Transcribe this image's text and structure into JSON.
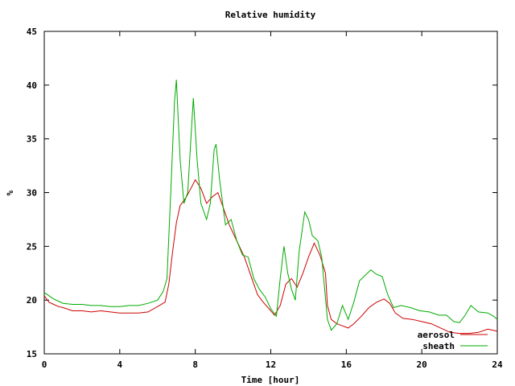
{
  "chart_data": {
    "type": "line",
    "title": "Relative humidity",
    "xlabel": "Time [hour]",
    "ylabel": "%",
    "xlim": [
      0,
      24
    ],
    "ylim": [
      15,
      45
    ],
    "x_ticks": [
      0,
      4,
      8,
      12,
      16,
      20,
      24
    ],
    "y_ticks": [
      15,
      20,
      25,
      30,
      35,
      40,
      45
    ],
    "grid": false,
    "legend_position": "bottom-right",
    "series": [
      {
        "name": "aerosol",
        "color": "#cc0000",
        "points": [
          [
            0,
            20.4
          ],
          [
            0.25,
            19.8
          ],
          [
            0.5,
            19.6
          ],
          [
            0.75,
            19.4
          ],
          [
            1,
            19.3
          ],
          [
            1.5,
            19.0
          ],
          [
            2,
            19.0
          ],
          [
            2.5,
            18.9
          ],
          [
            3,
            19.0
          ],
          [
            3.5,
            18.9
          ],
          [
            4,
            18.8
          ],
          [
            4.5,
            18.8
          ],
          [
            5,
            18.8
          ],
          [
            5.5,
            18.9
          ],
          [
            6,
            19.4
          ],
          [
            6.4,
            19.8
          ],
          [
            6.6,
            21.5
          ],
          [
            6.8,
            24.5
          ],
          [
            7.0,
            27.2
          ],
          [
            7.2,
            28.8
          ],
          [
            7.5,
            29.5
          ],
          [
            7.8,
            30.5
          ],
          [
            8.0,
            31.2
          ],
          [
            8.3,
            30.4
          ],
          [
            8.6,
            29.0
          ],
          [
            8.9,
            29.6
          ],
          [
            9.2,
            30.0
          ],
          [
            9.5,
            28.5
          ],
          [
            9.8,
            27.0
          ],
          [
            10.2,
            25.5
          ],
          [
            10.6,
            24.0
          ],
          [
            11.0,
            22.0
          ],
          [
            11.3,
            20.5
          ],
          [
            11.6,
            19.8
          ],
          [
            11.9,
            19.2
          ],
          [
            12.2,
            18.6
          ],
          [
            12.5,
            19.5
          ],
          [
            12.8,
            21.5
          ],
          [
            13.1,
            22.0
          ],
          [
            13.4,
            21.2
          ],
          [
            13.7,
            22.5
          ],
          [
            14.0,
            24.0
          ],
          [
            14.3,
            25.3
          ],
          [
            14.6,
            24.2
          ],
          [
            14.9,
            22.5
          ],
          [
            15.0,
            19.5
          ],
          [
            15.2,
            18.2
          ],
          [
            15.5,
            17.8
          ],
          [
            15.8,
            17.6
          ],
          [
            16.1,
            17.4
          ],
          [
            16.4,
            17.8
          ],
          [
            16.8,
            18.5
          ],
          [
            17.2,
            19.3
          ],
          [
            17.6,
            19.8
          ],
          [
            18.0,
            20.1
          ],
          [
            18.3,
            19.7
          ],
          [
            18.6,
            18.8
          ],
          [
            19.0,
            18.3
          ],
          [
            19.5,
            18.2
          ],
          [
            20.0,
            18.0
          ],
          [
            20.5,
            17.8
          ],
          [
            21.0,
            17.4
          ],
          [
            21.5,
            17.0
          ],
          [
            22.0,
            16.9
          ],
          [
            22.5,
            16.9
          ],
          [
            23.0,
            17.0
          ],
          [
            23.5,
            17.3
          ],
          [
            24.0,
            17.1
          ]
        ]
      },
      {
        "name": "sheath",
        "color": "#00aa00",
        "points": [
          [
            0,
            20.7
          ],
          [
            0.25,
            20.4
          ],
          [
            0.5,
            20.1
          ],
          [
            0.75,
            19.9
          ],
          [
            1,
            19.7
          ],
          [
            1.5,
            19.6
          ],
          [
            2,
            19.6
          ],
          [
            2.5,
            19.5
          ],
          [
            3,
            19.5
          ],
          [
            3.5,
            19.4
          ],
          [
            4,
            19.4
          ],
          [
            4.5,
            19.5
          ],
          [
            5,
            19.5
          ],
          [
            5.5,
            19.7
          ],
          [
            6,
            20.0
          ],
          [
            6.3,
            20.8
          ],
          [
            6.5,
            22.0
          ],
          [
            6.7,
            30.0
          ],
          [
            6.9,
            38.5
          ],
          [
            7.0,
            40.5
          ],
          [
            7.2,
            33.0
          ],
          [
            7.4,
            29.0
          ],
          [
            7.6,
            30.0
          ],
          [
            7.8,
            36.0
          ],
          [
            7.9,
            38.8
          ],
          [
            8.1,
            33.0
          ],
          [
            8.3,
            29.0
          ],
          [
            8.6,
            27.5
          ],
          [
            8.8,
            29.0
          ],
          [
            9.0,
            34.0
          ],
          [
            9.1,
            34.5
          ],
          [
            9.3,
            31.0
          ],
          [
            9.6,
            27.0
          ],
          [
            9.9,
            27.5
          ],
          [
            10.2,
            25.5
          ],
          [
            10.5,
            24.2
          ],
          [
            10.8,
            24.0
          ],
          [
            11.1,
            22.0
          ],
          [
            11.4,
            21.0
          ],
          [
            11.7,
            20.3
          ],
          [
            12.0,
            19.2
          ],
          [
            12.3,
            18.5
          ],
          [
            12.5,
            22.0
          ],
          [
            12.7,
            25.0
          ],
          [
            12.9,
            22.5
          ],
          [
            13.1,
            21.0
          ],
          [
            13.3,
            20.0
          ],
          [
            13.5,
            24.5
          ],
          [
            13.8,
            28.2
          ],
          [
            14.0,
            27.5
          ],
          [
            14.2,
            26.0
          ],
          [
            14.5,
            25.5
          ],
          [
            14.7,
            24.0
          ],
          [
            15.0,
            18.2
          ],
          [
            15.2,
            17.2
          ],
          [
            15.5,
            17.8
          ],
          [
            15.8,
            19.5
          ],
          [
            16.1,
            18.2
          ],
          [
            16.4,
            19.8
          ],
          [
            16.7,
            21.8
          ],
          [
            17.0,
            22.3
          ],
          [
            17.3,
            22.8
          ],
          [
            17.6,
            22.4
          ],
          [
            17.9,
            22.2
          ],
          [
            18.2,
            20.5
          ],
          [
            18.5,
            19.3
          ],
          [
            18.9,
            19.5
          ],
          [
            19.4,
            19.3
          ],
          [
            19.9,
            19.0
          ],
          [
            20.4,
            18.9
          ],
          [
            20.9,
            18.6
          ],
          [
            21.3,
            18.6
          ],
          [
            21.7,
            18.0
          ],
          [
            22.0,
            17.9
          ],
          [
            22.3,
            18.6
          ],
          [
            22.6,
            19.5
          ],
          [
            23.0,
            18.9
          ],
          [
            23.5,
            18.8
          ],
          [
            23.8,
            18.5
          ],
          [
            24.0,
            18.2
          ]
        ]
      }
    ]
  }
}
